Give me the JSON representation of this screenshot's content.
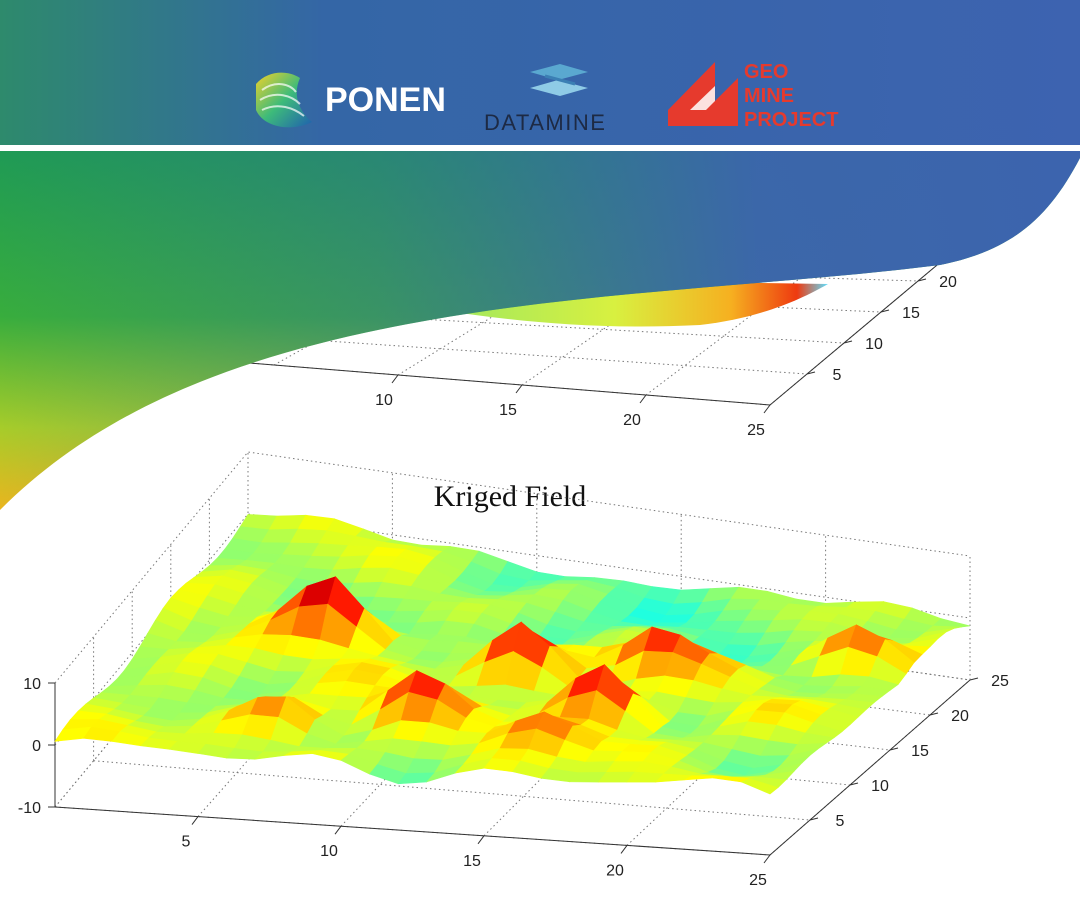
{
  "logos": {
    "ponen": "PONEN",
    "datamine": "DATAMINE",
    "geomine": [
      "GEO",
      "MINE",
      "PROJECT"
    ]
  },
  "chart_data": [
    {
      "type": "surface",
      "title": "",
      "xlabel": "",
      "ylabel": "",
      "zlabel": "",
      "x_ticks": [
        "10",
        "15",
        "20",
        "25"
      ],
      "y_ticks": [
        "5",
        "10",
        "15",
        "20"
      ]
    },
    {
      "type": "surface",
      "title": "Kriged Field",
      "xlabel": "",
      "ylabel": "",
      "zlabel": "",
      "xlim": [
        0,
        25
      ],
      "ylim": [
        0,
        25
      ],
      "zlim": [
        -10,
        10
      ],
      "x_ticks": [
        "5",
        "10",
        "15",
        "20",
        "25"
      ],
      "y_ticks": [
        "5",
        "10",
        "15",
        "20",
        "25"
      ],
      "z_ticks": [
        "10",
        "0",
        "-10"
      ],
      "grid": true,
      "colormap": "jet",
      "peaks": [
        {
          "x": 6,
          "y": 14,
          "z": 9
        },
        {
          "x": 13,
          "y": 12,
          "z": 8
        },
        {
          "x": 17,
          "y": 14,
          "z": 7
        },
        {
          "x": 17,
          "y": 8,
          "z": 8
        },
        {
          "x": 23,
          "y": 18,
          "z": 6
        },
        {
          "x": 11,
          "y": 6,
          "z": 6
        },
        {
          "x": 7,
          "y": 4,
          "z": 5
        },
        {
          "x": 16,
          "y": 4,
          "z": 5
        }
      ]
    }
  ]
}
